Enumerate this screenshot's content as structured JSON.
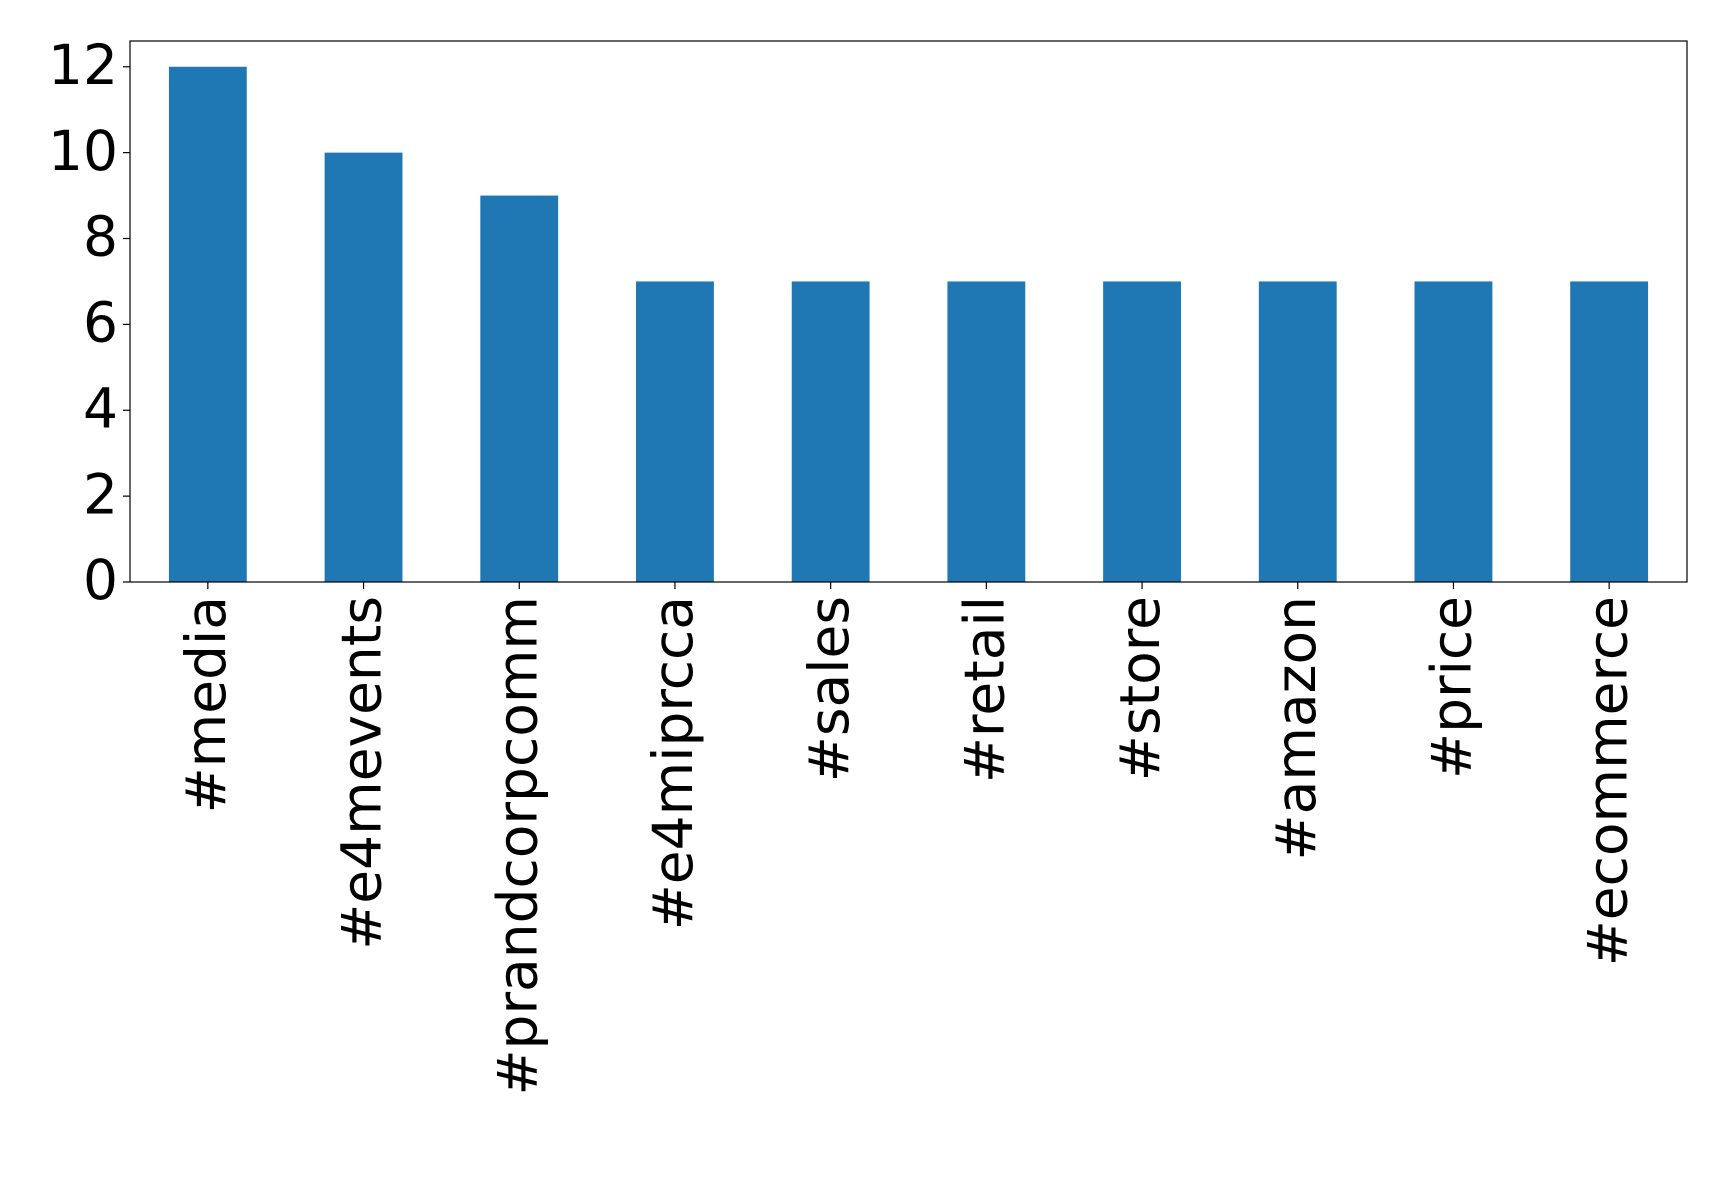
{
  "chart_data": {
    "type": "bar",
    "categories": [
      "#media",
      "#e4mevents",
      "#prandcorpcomm",
      "#e4miprcca",
      "#sales",
      "#retail",
      "#store",
      "#amazon",
      "#price",
      "#ecommerce"
    ],
    "values": [
      12,
      10,
      9,
      7,
      7,
      7,
      7,
      7,
      7,
      7
    ],
    "color": "#1f77b4",
    "ylim": [
      0,
      12.6
    ],
    "yticks": [
      0,
      2,
      4,
      6,
      8,
      10,
      12
    ],
    "grid": false
  }
}
